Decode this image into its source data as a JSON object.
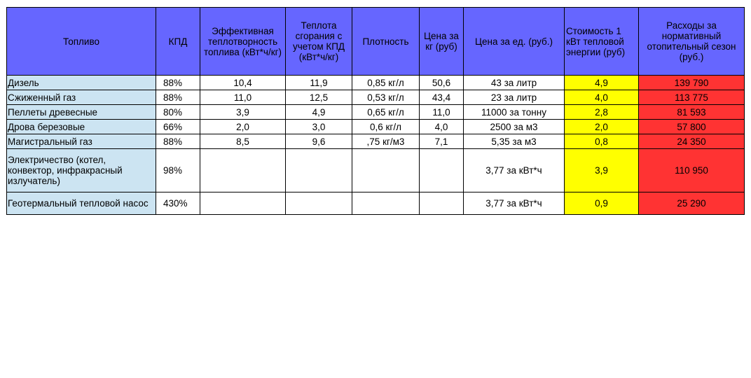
{
  "table": {
    "headers": {
      "fuel": "Топливо",
      "efficiency": "КПД",
      "effective_heat": "Эффективная теплотворность топлива (кВт*ч/кг)",
      "heat_with_eff": "Теплота сгорания с учетом КПД (кВт*ч/кг)",
      "density": "Плотность",
      "price_per_kg": "Цена за кг (руб)",
      "price_per_unit": "Цена за ед. (руб.)",
      "cost_per_kwh": "Стоимость 1 кВт тепловой энергии (руб)",
      "season_cost": "Расходы за нормативный отопительный сезон (руб.)"
    },
    "rows": [
      {
        "fuel": "Дизель",
        "efficiency": "88%",
        "effective_heat": "10,4",
        "heat_with_eff": "11,9",
        "density": "0,85 кг/л",
        "price_per_kg": "50,6",
        "price_per_unit": "43 за литр",
        "cost_per_kwh": "4,9",
        "season_cost": "139 790"
      },
      {
        "fuel": "Сжиженный газ",
        "efficiency": "88%",
        "effective_heat": "11,0",
        "heat_with_eff": "12,5",
        "density": "0,53 кг/л",
        "price_per_kg": "43,4",
        "price_per_unit": "23 за литр",
        "cost_per_kwh": "4,0",
        "season_cost": "113 775"
      },
      {
        "fuel": "Пеллеты древесные",
        "efficiency": "80%",
        "effective_heat": "3,9",
        "heat_with_eff": "4,9",
        "density": "0,65 кг/л",
        "price_per_kg": "11,0",
        "price_per_unit": "11000 за тонну",
        "cost_per_kwh": "2,8",
        "season_cost": "81 593"
      },
      {
        "fuel": "Дрова березовые",
        "efficiency": "66%",
        "effective_heat": "2,0",
        "heat_with_eff": "3,0",
        "density": "0,6 кг/л",
        "price_per_kg": "4,0",
        "price_per_unit": "2500 за м3",
        "cost_per_kwh": "2,0",
        "season_cost": "57 800"
      },
      {
        "fuel": "Магистральный газ",
        "efficiency": "88%",
        "effective_heat": "8,5",
        "heat_with_eff": "9,6",
        "density": ",75 кг/м3",
        "price_per_kg": "7,1",
        "price_per_unit": "5,35 за м3",
        "cost_per_kwh": "0,8",
        "season_cost": "24 350"
      },
      {
        "fuel": "Электричество (котел, конвектор, инфракрасный излучатель)",
        "efficiency": "98%",
        "effective_heat": "",
        "heat_with_eff": "",
        "density": "",
        "price_per_kg": "",
        "price_per_unit": "3,77 за кВт*ч",
        "cost_per_kwh": "3,9",
        "season_cost": "110 950"
      },
      {
        "fuel": "Геотермальный тепловой насос",
        "efficiency": "430%",
        "effective_heat": "",
        "heat_with_eff": "",
        "density": "",
        "price_per_kg": "",
        "price_per_unit": "3,77 за кВт*ч",
        "cost_per_kwh": "0,9",
        "season_cost": "25 290"
      }
    ]
  },
  "colors": {
    "header_bg": "#6666ff",
    "fuel_name_bg": "#cce4f2",
    "cost_per_kwh_bg": "#ffff00",
    "season_cost_bg": "#ff3333"
  }
}
